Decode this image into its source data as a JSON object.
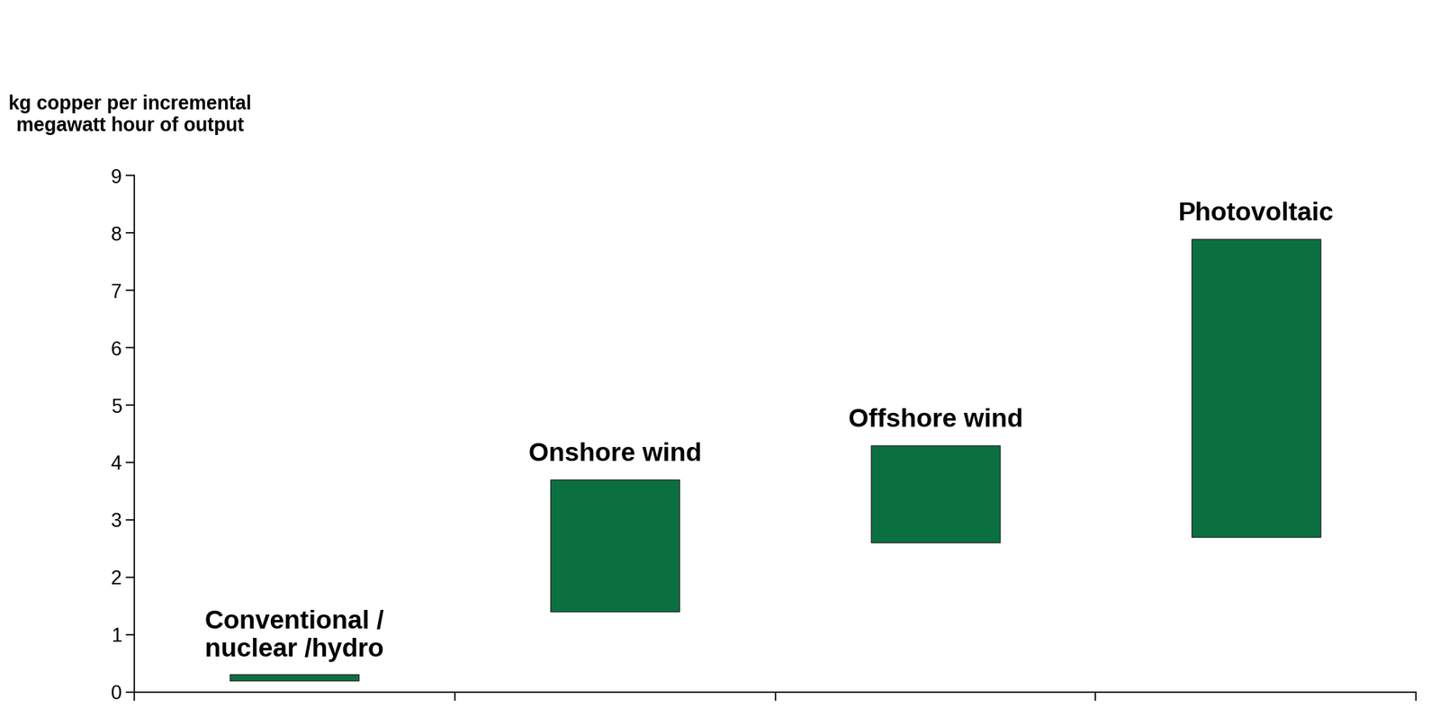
{
  "chart_data": {
    "type": "bar",
    "y_label": "kg copper per incremental megawatt hour of output",
    "categories": [
      "Conventional / nuclear /hydro",
      "Onshore wind",
      "Offshore wind",
      "Photovoltaic"
    ],
    "low": [
      0.2,
      1.4,
      2.6,
      2.7
    ],
    "high": [
      0.3,
      3.7,
      4.3,
      7.9
    ],
    "color": "#0a7040",
    "ylim": [
      0,
      9
    ],
    "yticks": [
      0,
      1,
      2,
      3,
      4,
      5,
      6,
      7,
      8,
      9
    ],
    "grid": false,
    "tick_labels": "y"
  }
}
